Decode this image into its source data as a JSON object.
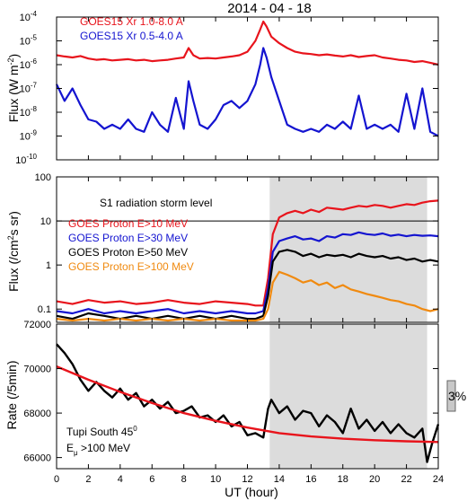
{
  "title": "2014 - 04 - 18",
  "x_axis": {
    "label": "UT (hour)",
    "range": [
      0,
      24
    ],
    "ticks": [
      "0",
      "2",
      "4",
      "6",
      "8",
      "10",
      "12",
      "14",
      "16",
      "18",
      "20",
      "22",
      "24"
    ]
  },
  "scale_bar": {
    "label": "3%"
  },
  "colors": {
    "red": "#e8141c",
    "blue": "#1414d0",
    "black": "#000000",
    "orange": "#f08a10",
    "shade": "#dcdcdc"
  },
  "chart_data": [
    {
      "type": "line",
      "panel": "xray",
      "ylabel": "Flux (W m⁻²)",
      "ylabel_base": "Flux (W m",
      "ylabel_exp": "-2",
      "ylabel_tail": ")",
      "y_scale": "log",
      "ylim": [
        1e-10,
        0.0001
      ],
      "y_ticks": [
        {
          "base": "10",
          "exp": "-4"
        },
        {
          "base": "10",
          "exp": "-5"
        },
        {
          "base": "10",
          "exp": "-6"
        },
        {
          "base": "10",
          "exp": "-7"
        },
        {
          "base": "10",
          "exp": "-8"
        },
        {
          "base": "10",
          "exp": "-9"
        },
        {
          "base": "10",
          "exp": "-10"
        }
      ],
      "series": [
        {
          "name": "GOES15 Xr 1.0-8.0 A",
          "color": "#e8141c",
          "x": [
            0,
            0.5,
            1,
            1.5,
            2,
            2.5,
            3,
            3.5,
            4,
            4.5,
            5,
            5.5,
            6,
            6.5,
            7,
            7.5,
            8,
            8.3,
            8.6,
            9,
            9.5,
            10,
            10.5,
            11,
            11.5,
            12,
            12.5,
            12.8,
            13,
            13.2,
            13.5,
            14,
            14.5,
            15,
            15.5,
            16,
            16.5,
            17,
            17.5,
            18,
            18.5,
            19,
            19.5,
            20,
            20.5,
            21,
            21.5,
            22,
            22.5,
            23,
            23.5,
            24
          ],
          "y": [
            2.5e-06,
            2.2e-06,
            2e-06,
            2.3e-06,
            1.8e-06,
            1.6e-06,
            1.7e-06,
            1.5e-06,
            1.6e-06,
            1.7e-06,
            1.5e-06,
            1.6e-06,
            1.4e-06,
            1.5e-06,
            1.6e-06,
            1.8e-06,
            2e-06,
            5e-06,
            2.5e-06,
            1.8e-06,
            1.9e-06,
            1.8e-06,
            2e-06,
            2.2e-06,
            2.5e-06,
            3.5e-06,
            1e-05,
            3e-05,
            6.5e-05,
            4e-05,
            1.5e-05,
            8e-06,
            5e-06,
            3.5e-06,
            3e-06,
            2.8e-06,
            2.5e-06,
            2.7e-06,
            2.4e-06,
            2.2e-06,
            2.5e-06,
            2.1e-06,
            2.3e-06,
            2.5e-06,
            2e-06,
            1.8e-06,
            1.6e-06,
            1.5e-06,
            1.3e-06,
            1.4e-06,
            1.2e-06,
            1e-06
          ]
        },
        {
          "name": "GOES15 Xr 0.5-4.0 A",
          "color": "#1414d0",
          "x": [
            0,
            0.5,
            1,
            1.5,
            2,
            2.5,
            3,
            3.5,
            4,
            4.5,
            5,
            5.5,
            6,
            6.5,
            7,
            7.5,
            8,
            8.3,
            8.6,
            9,
            9.5,
            10,
            10.5,
            11,
            11.5,
            12,
            12.5,
            12.8,
            13,
            13.2,
            13.5,
            14,
            14.5,
            15,
            15.5,
            16,
            16.5,
            17,
            17.5,
            18,
            18.5,
            19,
            19.5,
            20,
            20.5,
            21,
            21.5,
            22,
            22.5,
            23,
            23.5,
            24
          ],
          "y": [
            1.5e-07,
            3e-08,
            1e-07,
            2e-08,
            5e-09,
            4e-09,
            2e-09,
            3e-09,
            2e-09,
            5e-09,
            2e-09,
            1.5e-09,
            1e-08,
            3e-09,
            1.5e-09,
            4e-08,
            2e-09,
            2e-07,
            3e-08,
            3e-09,
            2e-09,
            5e-09,
            2e-08,
            3e-08,
            1.5e-08,
            3e-08,
            1.5e-07,
            1e-06,
            5e-06,
            2e-06,
            3e-07,
            3e-08,
            3e-09,
            2e-09,
            1.5e-09,
            2e-09,
            1.5e-09,
            3e-09,
            2e-09,
            4e-09,
            2e-09,
            5e-08,
            2e-09,
            3e-09,
            2e-09,
            3e-09,
            1.5e-09,
            6e-08,
            2e-09,
            1e-07,
            1.5e-09,
            1e-09
          ]
        }
      ]
    },
    {
      "type": "line",
      "panel": "proton",
      "ylabel": "Flux (/cm²s sr)",
      "ylabel_base": "Flux (/cm",
      "ylabel_exp": "2",
      "ylabel_tail": "s sr)",
      "y_scale": "log",
      "ylim": [
        0.05,
        100
      ],
      "y_ticks": [
        "100",
        "10",
        "1",
        "0.1"
      ],
      "shaded_region": [
        13.4,
        23.3
      ],
      "annotation": {
        "text": "S1 radiation storm level",
        "y": 10
      },
      "series": [
        {
          "name": "GOES Proton E>10 MeV",
          "color": "#e8141c",
          "x": [
            0,
            1,
            2,
            3,
            4,
            5,
            6,
            7,
            8,
            9,
            10,
            11,
            12,
            12.5,
            13,
            13.3,
            13.6,
            14,
            14.5,
            15,
            15.5,
            16,
            16.5,
            17,
            17.5,
            18,
            18.5,
            19,
            19.5,
            20,
            20.5,
            21,
            21.5,
            22,
            22.5,
            23,
            23.5,
            24
          ],
          "y": [
            0.15,
            0.13,
            0.16,
            0.14,
            0.15,
            0.13,
            0.14,
            0.16,
            0.14,
            0.13,
            0.15,
            0.14,
            0.13,
            0.12,
            0.12,
            0.5,
            5,
            12,
            15,
            17,
            15,
            18,
            16,
            20,
            19,
            18,
            20,
            22,
            21,
            23,
            22,
            20,
            22,
            24,
            23,
            26,
            28,
            29
          ]
        },
        {
          "name": "GOES Proton E>30 MeV",
          "color": "#1414d0",
          "x": [
            0,
            1,
            2,
            3,
            4,
            5,
            6,
            7,
            8,
            9,
            10,
            11,
            12,
            12.5,
            13,
            13.3,
            13.6,
            14,
            14.5,
            15,
            15.5,
            16,
            16.5,
            17,
            17.5,
            18,
            18.5,
            19,
            19.5,
            20,
            20.5,
            21,
            21.5,
            22,
            22.5,
            23,
            23.5,
            24
          ],
          "y": [
            0.09,
            0.08,
            0.1,
            0.08,
            0.09,
            0.08,
            0.09,
            0.1,
            0.08,
            0.09,
            0.08,
            0.09,
            0.08,
            0.08,
            0.09,
            0.3,
            2,
            3.5,
            4,
            4.5,
            3.8,
            4,
            3.5,
            4.5,
            4.2,
            5,
            4.8,
            5.5,
            5,
            4.8,
            5.2,
            4.6,
            4.9,
            4.5,
            4.8,
            4.6,
            4.7,
            4.5
          ]
        },
        {
          "name": "GOES Proton E>50 MeV",
          "color": "#000000",
          "x": [
            0,
            1,
            2,
            3,
            4,
            5,
            6,
            7,
            8,
            9,
            10,
            11,
            12,
            12.5,
            13,
            13.3,
            13.6,
            14,
            14.5,
            15,
            15.5,
            16,
            16.5,
            17,
            17.5,
            18,
            18.5,
            19,
            19.5,
            20,
            20.5,
            21,
            21.5,
            22,
            22.5,
            23,
            23.5,
            24
          ],
          "y": [
            0.07,
            0.06,
            0.08,
            0.07,
            0.06,
            0.07,
            0.06,
            0.07,
            0.06,
            0.07,
            0.06,
            0.07,
            0.06,
            0.06,
            0.07,
            0.2,
            1.2,
            2,
            2.2,
            2.0,
            1.6,
            1.8,
            1.5,
            1.7,
            1.6,
            1.7,
            1.5,
            1.8,
            1.6,
            1.5,
            1.6,
            1.4,
            1.5,
            1.3,
            1.4,
            1.2,
            1.3,
            1.2
          ]
        },
        {
          "name": "GOES Proton E>100 MeV",
          "color": "#f08a10",
          "x": [
            0,
            1,
            2,
            3,
            4,
            5,
            6,
            7,
            8,
            9,
            10,
            11,
            12,
            12.5,
            13,
            13.3,
            13.6,
            14,
            14.5,
            15,
            15.5,
            16,
            16.5,
            17,
            17.5,
            18,
            18.5,
            19,
            19.5,
            20,
            20.5,
            21,
            21.5,
            22,
            22.5,
            23,
            23.5,
            24
          ],
          "y": [
            0.06,
            0.055,
            0.06,
            0.055,
            0.06,
            0.055,
            0.06,
            0.055,
            0.06,
            0.055,
            0.06,
            0.055,
            0.055,
            0.055,
            0.06,
            0.1,
            0.4,
            0.7,
            0.6,
            0.5,
            0.4,
            0.45,
            0.35,
            0.4,
            0.3,
            0.35,
            0.28,
            0.25,
            0.22,
            0.2,
            0.18,
            0.16,
            0.15,
            0.13,
            0.12,
            0.1,
            0.09,
            0.1
          ]
        }
      ]
    },
    {
      "type": "line",
      "panel": "neutron",
      "ylabel": "Rate (/5min)",
      "y_scale": "linear",
      "ylim": [
        65500,
        72000
      ],
      "y_ticks": [
        "72000",
        "70000",
        "68000",
        "66000"
      ],
      "shaded_region": [
        13.4,
        23.3
      ],
      "annotation": {
        "line1": "Tupi South 45",
        "line1_sup": "0",
        "line2_pre": "E",
        "line2_sub": "μ",
        "line2_post": " >100 MeV"
      },
      "series": [
        {
          "name": "Tupi South count rate",
          "color": "#000000",
          "x": [
            0,
            0.5,
            1,
            1.5,
            2,
            2.5,
            3,
            3.5,
            4,
            4.5,
            5,
            5.5,
            6,
            6.5,
            7,
            7.5,
            8,
            8.5,
            9,
            9.5,
            10,
            10.5,
            11,
            11.5,
            12,
            12.5,
            13,
            13.3,
            13.5,
            14,
            14.5,
            15,
            15.5,
            16,
            16.5,
            17,
            17.5,
            18,
            18.5,
            19,
            19.5,
            20,
            20.5,
            21,
            21.5,
            22,
            22.5,
            23,
            23.3,
            23.6,
            24
          ],
          "y": [
            71100,
            70700,
            70200,
            69500,
            69000,
            69400,
            69000,
            68700,
            69100,
            68600,
            68900,
            68300,
            68600,
            68200,
            68500,
            68000,
            68100,
            68300,
            67800,
            67900,
            67600,
            67900,
            67400,
            67600,
            67000,
            67100,
            66900,
            68200,
            68600,
            68000,
            68300,
            67700,
            68100,
            68000,
            67400,
            67900,
            67600,
            67100,
            68200,
            67300,
            67700,
            67200,
            67600,
            67100,
            67500,
            67100,
            66900,
            67300,
            65800,
            66600,
            67500
          ]
        },
        {
          "name": "Fit",
          "color": "#e8141c",
          "x": [
            0,
            2,
            4,
            6,
            8,
            10,
            12,
            14,
            16,
            18,
            20,
            22,
            24
          ],
          "y": [
            70100,
            69500,
            68950,
            68450,
            68000,
            67650,
            67350,
            67100,
            66950,
            66850,
            66780,
            66730,
            66700
          ]
        }
      ]
    }
  ]
}
